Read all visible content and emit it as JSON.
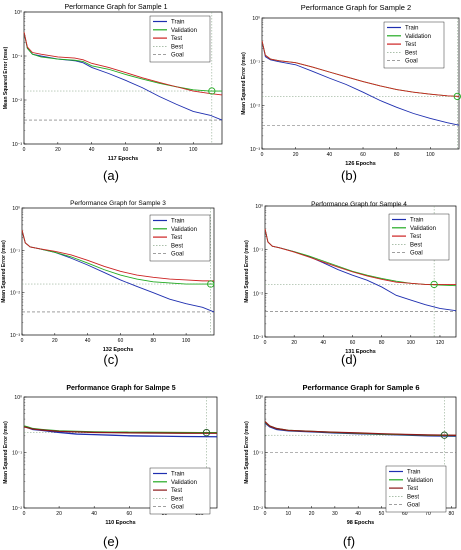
{
  "figure": {
    "panel_labels": [
      "(a)",
      "(b)",
      "(c)",
      "(d)",
      "(e)",
      "(f)"
    ]
  },
  "chart_data": [
    {
      "type": "line",
      "title": "Performance Graph for Sample 1",
      "xlabel": "117 Epochs",
      "ylabel": "Mean Squared Error  (mse)",
      "y_scale": "log",
      "xlim": [
        0,
        117
      ],
      "ylim": [
        0.001,
        1
      ],
      "xticks": [
        0,
        20,
        40,
        60,
        80,
        100
      ],
      "yticks": [
        {
          "value": 1,
          "label": "10⁰"
        },
        {
          "value": 0.1,
          "label": "10⁻¹"
        },
        {
          "value": 0.01,
          "label": "10⁻²"
        },
        {
          "value": 0.001,
          "label": "10⁻³"
        }
      ],
      "legend": {
        "placement": "top-right",
        "entries": [
          "Train",
          "Validation",
          "Test",
          "Best",
          "Goal"
        ]
      },
      "colors": {
        "Train": "#1f2fb0",
        "Validation": "#22aa22",
        "Test": "#cc2222",
        "Best": "#7a9a7a",
        "Goal": "#666666"
      },
      "series": [
        {
          "name": "Train",
          "x": [
            0,
            2,
            5,
            10,
            20,
            30,
            35,
            40,
            50,
            60,
            70,
            80,
            90,
            100,
            110,
            117
          ],
          "y": [
            0.35,
            0.15,
            0.11,
            0.1,
            0.085,
            0.078,
            0.07,
            0.055,
            0.04,
            0.028,
            0.019,
            0.012,
            0.008,
            0.0055,
            0.0045,
            0.0035
          ]
        },
        {
          "name": "Validation",
          "x": [
            0,
            2,
            5,
            10,
            20,
            30,
            35,
            40,
            50,
            60,
            70,
            80,
            90,
            100,
            110,
            117
          ],
          "y": [
            0.35,
            0.15,
            0.11,
            0.095,
            0.085,
            0.08,
            0.075,
            0.06,
            0.05,
            0.038,
            0.03,
            0.024,
            0.02,
            0.017,
            0.016,
            0.016
          ]
        },
        {
          "name": "Test",
          "x": [
            0,
            2,
            5,
            10,
            20,
            30,
            35,
            40,
            50,
            60,
            70,
            80,
            90,
            100,
            110,
            117
          ],
          "y": [
            0.35,
            0.16,
            0.12,
            0.11,
            0.095,
            0.09,
            0.082,
            0.068,
            0.055,
            0.042,
            0.032,
            0.025,
            0.02,
            0.016,
            0.014,
            0.013
          ]
        }
      ],
      "best": {
        "epoch": 111,
        "value": 0.016
      },
      "goal": 0.0035
    },
    {
      "type": "line",
      "title": "Performance Graph for Sample 2",
      "xlabel": "126 Epochs",
      "ylabel": "Mean Squared Error  (mse)",
      "y_scale": "log",
      "xlim": [
        0,
        117
      ],
      "ylim": [
        0.001,
        1
      ],
      "xticks": [
        0,
        20,
        40,
        60,
        80,
        100
      ],
      "yticks": [
        {
          "value": 1,
          "label": "10⁰"
        },
        {
          "value": 0.1,
          "label": "10⁻¹"
        },
        {
          "value": 0.01,
          "label": "10⁻²"
        },
        {
          "value": 0.001,
          "label": "10⁻³"
        }
      ],
      "legend": {
        "placement": "top-right",
        "entries": [
          "Train",
          "Validation",
          "Test",
          "Best",
          "Goal"
        ]
      },
      "colors": {
        "Train": "#1f2fb0",
        "Validation": "#22aa22",
        "Test": "#cc2222",
        "Best": "#7a9a7a",
        "Goal": "#666666"
      },
      "series": [
        {
          "name": "Train",
          "x": [
            0,
            2,
            5,
            10,
            20,
            30,
            40,
            50,
            60,
            70,
            80,
            90,
            100,
            110,
            117
          ],
          "y": [
            0.3,
            0.13,
            0.11,
            0.1,
            0.085,
            0.06,
            0.042,
            0.03,
            0.02,
            0.013,
            0.009,
            0.0065,
            0.005,
            0.004,
            0.0035
          ]
        },
        {
          "name": "Validation",
          "x": [
            0,
            2,
            5,
            10,
            20,
            30,
            40,
            50,
            60,
            70,
            80,
            90,
            100,
            110,
            117
          ],
          "y": [
            0.3,
            0.14,
            0.115,
            0.105,
            0.095,
            0.075,
            0.058,
            0.045,
            0.035,
            0.028,
            0.023,
            0.02,
            0.018,
            0.0165,
            0.016
          ]
        },
        {
          "name": "Test",
          "x": [
            0,
            2,
            5,
            10,
            20,
            30,
            40,
            50,
            60,
            70,
            80,
            90,
            100,
            110,
            117
          ],
          "y": [
            0.3,
            0.14,
            0.115,
            0.105,
            0.095,
            0.075,
            0.058,
            0.045,
            0.035,
            0.028,
            0.023,
            0.02,
            0.018,
            0.0165,
            0.016
          ]
        }
      ],
      "best": {
        "epoch": 116,
        "value": 0.016
      },
      "goal": 0.0035
    },
    {
      "type": "line",
      "title": "Performance Graph for Sample 3",
      "xlabel": "132 Epochs",
      "ylabel": "Mean Squared Error  (mse)",
      "y_scale": "log",
      "xlim": [
        0,
        117
      ],
      "ylim": [
        0.001,
        1
      ],
      "xticks": [
        0,
        20,
        40,
        60,
        80,
        100
      ],
      "yticks": [
        {
          "value": 1,
          "label": "10⁰"
        },
        {
          "value": 0.1,
          "label": "10⁻¹"
        },
        {
          "value": 0.01,
          "label": "10⁻²"
        },
        {
          "value": 0.001,
          "label": "10⁻³"
        }
      ],
      "legend": {
        "placement": "top-right",
        "entries": [
          "Train",
          "Validation",
          "Test",
          "Best",
          "Goal"
        ]
      },
      "colors": {
        "Train": "#1f2fb0",
        "Validation": "#22aa22",
        "Test": "#cc2222",
        "Best": "#7a9a7a",
        "Goal": "#666666"
      },
      "series": [
        {
          "name": "Train",
          "x": [
            0,
            2,
            5,
            10,
            20,
            30,
            40,
            50,
            60,
            70,
            80,
            90,
            100,
            110,
            117
          ],
          "y": [
            0.3,
            0.15,
            0.12,
            0.11,
            0.09,
            0.065,
            0.045,
            0.03,
            0.02,
            0.014,
            0.01,
            0.007,
            0.0055,
            0.0045,
            0.0035
          ]
        },
        {
          "name": "Validation",
          "x": [
            0,
            2,
            5,
            10,
            20,
            30,
            40,
            50,
            60,
            70,
            80,
            90,
            100,
            110,
            117
          ],
          "y": [
            0.3,
            0.15,
            0.12,
            0.11,
            0.09,
            0.07,
            0.05,
            0.035,
            0.026,
            0.021,
            0.018,
            0.017,
            0.016,
            0.016,
            0.016
          ]
        },
        {
          "name": "Test",
          "x": [
            0,
            2,
            5,
            10,
            20,
            30,
            40,
            50,
            60,
            70,
            80,
            90,
            100,
            110,
            117
          ],
          "y": [
            0.3,
            0.15,
            0.12,
            0.11,
            0.095,
            0.078,
            0.058,
            0.042,
            0.032,
            0.026,
            0.023,
            0.021,
            0.02,
            0.019,
            0.019
          ]
        }
      ],
      "best": {
        "epoch": 115,
        "value": 0.016
      },
      "goal": 0.0035
    },
    {
      "type": "line",
      "title": "Performance Graph for Sample 4",
      "xlabel": "131 Epochs",
      "ylabel": "Mean Squared Error  (mse)",
      "y_scale": "log",
      "xlim": [
        0,
        131
      ],
      "ylim": [
        0.001,
        1
      ],
      "xticks": [
        0,
        20,
        40,
        60,
        80,
        100,
        120
      ],
      "yticks": [
        {
          "value": 1,
          "label": "10⁰"
        },
        {
          "value": 0.1,
          "label": "10⁻¹"
        },
        {
          "value": 0.01,
          "label": "10⁻²"
        },
        {
          "value": 0.001,
          "label": "10⁻³"
        }
      ],
      "legend": {
        "placement": "top-right",
        "entries": [
          "Train",
          "Validation",
          "Test",
          "Best",
          "Goal"
        ]
      },
      "colors": {
        "Train": "#1f2fb0",
        "Validation": "#22aa22",
        "Test": "#cc2222",
        "Best": "#7a9a7a",
        "Goal": "#666666"
      },
      "series": [
        {
          "name": "Train",
          "x": [
            0,
            2,
            5,
            10,
            20,
            30,
            40,
            50,
            60,
            70,
            80,
            90,
            100,
            110,
            120,
            131
          ],
          "y": [
            0.3,
            0.15,
            0.12,
            0.11,
            0.09,
            0.07,
            0.05,
            0.035,
            0.026,
            0.02,
            0.014,
            0.009,
            0.007,
            0.0055,
            0.0045,
            0.004
          ]
        },
        {
          "name": "Validation",
          "x": [
            0,
            2,
            5,
            10,
            20,
            30,
            40,
            50,
            60,
            70,
            80,
            90,
            100,
            110,
            120,
            131
          ],
          "y": [
            0.3,
            0.15,
            0.12,
            0.11,
            0.09,
            0.072,
            0.055,
            0.042,
            0.032,
            0.026,
            0.022,
            0.019,
            0.017,
            0.016,
            0.0155,
            0.015
          ]
        },
        {
          "name": "Test",
          "x": [
            0,
            2,
            5,
            10,
            20,
            30,
            40,
            50,
            60,
            70,
            80,
            90,
            100,
            110,
            120,
            131
          ],
          "y": [
            0.3,
            0.15,
            0.12,
            0.11,
            0.088,
            0.068,
            0.052,
            0.04,
            0.031,
            0.025,
            0.021,
            0.018,
            0.017,
            0.016,
            0.016,
            0.016
          ]
        }
      ],
      "best": {
        "epoch": 116,
        "value": 0.016
      },
      "goal": 0.0038
    },
    {
      "type": "line",
      "title": "Performance Graph for Salmpe  5",
      "xlabel": "110 Epochs",
      "ylabel": "Mean Squared Error  (mse)",
      "y_scale": "log",
      "xlim": [
        0,
        110
      ],
      "ylim": [
        0.01,
        1
      ],
      "xticks": [
        0,
        20,
        40,
        60,
        80,
        100
      ],
      "yticks": [
        {
          "value": 1,
          "label": "10⁰"
        },
        {
          "value": 0.1,
          "label": "10⁻¹"
        },
        {
          "value": 0.01,
          "label": "10⁻²"
        }
      ],
      "legend": {
        "placement": "bottom-right",
        "entries": [
          "Train",
          "Validation",
          "Test",
          "Best",
          "Goal"
        ]
      },
      "colors": {
        "Train": "#1f2fb0",
        "Validation": "#22aa22",
        "Test": "#8b1a1a",
        "Best": "#7a9a7a",
        "Goal": "#666666"
      },
      "series": [
        {
          "name": "Train",
          "x": [
            0,
            2,
            5,
            10,
            20,
            30,
            40,
            50,
            60,
            70,
            80,
            90,
            100,
            110
          ],
          "y": [
            0.3,
            0.28,
            0.26,
            0.25,
            0.23,
            0.215,
            0.21,
            0.205,
            0.2,
            0.198,
            0.196,
            0.194,
            0.193,
            0.192
          ]
        },
        {
          "name": "Validation",
          "x": [
            0,
            2,
            5,
            10,
            20,
            30,
            40,
            50,
            60,
            70,
            80,
            90,
            100,
            110
          ],
          "y": [
            0.3,
            0.29,
            0.27,
            0.26,
            0.245,
            0.24,
            0.235,
            0.233,
            0.232,
            0.231,
            0.23,
            0.229,
            0.228,
            0.228
          ]
        },
        {
          "name": "Test",
          "x": [
            0,
            2,
            5,
            10,
            20,
            30,
            40,
            50,
            60,
            70,
            80,
            90,
            100,
            110
          ],
          "y": [
            0.29,
            0.28,
            0.265,
            0.255,
            0.24,
            0.235,
            0.23,
            0.228,
            0.226,
            0.225,
            0.224,
            0.223,
            0.222,
            0.222
          ]
        }
      ],
      "best": {
        "epoch": 104,
        "value": 0.228
      },
      "goal": 0.0
    },
    {
      "type": "line",
      "title": "Performance Graph for Sample 6",
      "xlabel": "98 Epochs",
      "ylabel": "Mean Squared Error  (mse)",
      "y_scale": "log",
      "xlim": [
        0,
        82
      ],
      "ylim": [
        0.01,
        1
      ],
      "xticks": [
        0,
        10,
        20,
        30,
        40,
        50,
        60,
        70,
        80
      ],
      "yticks": [
        {
          "value": 1,
          "label": "10⁰"
        },
        {
          "value": 0.1,
          "label": "10⁻¹"
        },
        {
          "value": 0.01,
          "label": "10⁻²"
        }
      ],
      "legend": {
        "placement": "bottom-right",
        "entries": [
          "Train",
          "Validation",
          "Test",
          "Best",
          "Goal"
        ]
      },
      "colors": {
        "Train": "#1f2fb0",
        "Validation": "#22aa22",
        "Test": "#8b1a1a",
        "Best": "#7a9a7a",
        "Goal": "#666666"
      },
      "series": [
        {
          "name": "Train",
          "x": [
            0,
            2,
            5,
            10,
            20,
            30,
            40,
            50,
            60,
            70,
            78,
            82
          ],
          "y": [
            0.34,
            0.29,
            0.26,
            0.245,
            0.235,
            0.225,
            0.218,
            0.212,
            0.206,
            0.2,
            0.197,
            0.196
          ]
        },
        {
          "name": "Validation",
          "x": [
            0,
            2,
            5,
            10,
            20,
            30,
            40,
            50,
            60,
            70,
            78,
            82
          ],
          "y": [
            0.35,
            0.3,
            0.27,
            0.25,
            0.24,
            0.23,
            0.222,
            0.215,
            0.21,
            0.205,
            0.203,
            0.202
          ]
        },
        {
          "name": "Test",
          "x": [
            0,
            2,
            5,
            10,
            20,
            30,
            40,
            50,
            60,
            70,
            78,
            82
          ],
          "y": [
            0.36,
            0.3,
            0.27,
            0.25,
            0.24,
            0.232,
            0.225,
            0.218,
            0.212,
            0.207,
            0.205,
            0.204
          ]
        }
      ],
      "best": {
        "epoch": 77,
        "value": 0.205
      },
      "goal": 0.1
    }
  ]
}
